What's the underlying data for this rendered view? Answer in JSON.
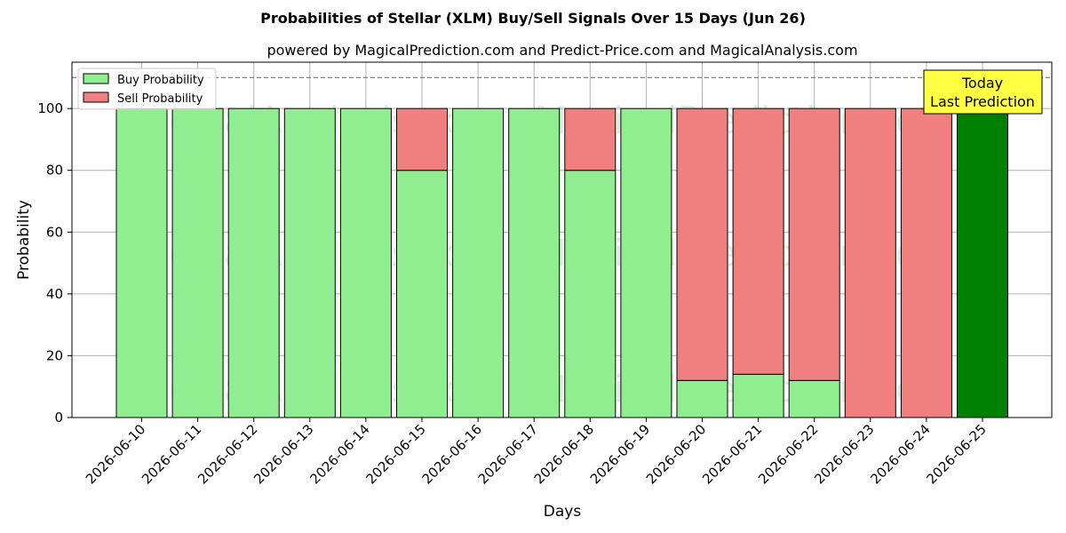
{
  "chart_data": {
    "type": "bar",
    "title": "Probabilities of Stellar (XLM) Buy/Sell Signals Over 15 Days (Jun 26)",
    "subtitle": "powered by MagicalPrediction.com and Predict-Price.com and MagicalAnalysis.com",
    "xlabel": "Days",
    "ylabel": "Probability",
    "ylim": [
      0,
      115
    ],
    "yticks": [
      0,
      20,
      40,
      60,
      80,
      100
    ],
    "reference_line": 110,
    "grid": true,
    "legend_position": "top-left",
    "categories": [
      "2026-06-10",
      "2026-06-11",
      "2026-06-12",
      "2026-06-13",
      "2026-06-14",
      "2026-06-15",
      "2026-06-16",
      "2026-06-17",
      "2026-06-18",
      "2026-06-19",
      "2026-06-20",
      "2026-06-21",
      "2026-06-22",
      "2026-06-23",
      "2026-06-24",
      "2026-06-25"
    ],
    "series": [
      {
        "name": "Buy Probability",
        "color": "#90ee90",
        "values": [
          100,
          100,
          100,
          100,
          100,
          80,
          100,
          100,
          80,
          100,
          12,
          14,
          12,
          0,
          0,
          100
        ]
      },
      {
        "name": "Sell Probability",
        "color": "#f08080",
        "values": [
          0,
          0,
          0,
          0,
          0,
          20,
          0,
          0,
          20,
          0,
          88,
          86,
          88,
          100,
          100,
          0
        ]
      }
    ],
    "highlight": {
      "index": 15,
      "color": "#008000",
      "label_line1": "Today",
      "label_line2": "Last Prediction",
      "box_color": "#ffff44"
    },
    "watermarks": [
      "MagicalAnalysis.com",
      "MagicalPrediction.com"
    ]
  }
}
